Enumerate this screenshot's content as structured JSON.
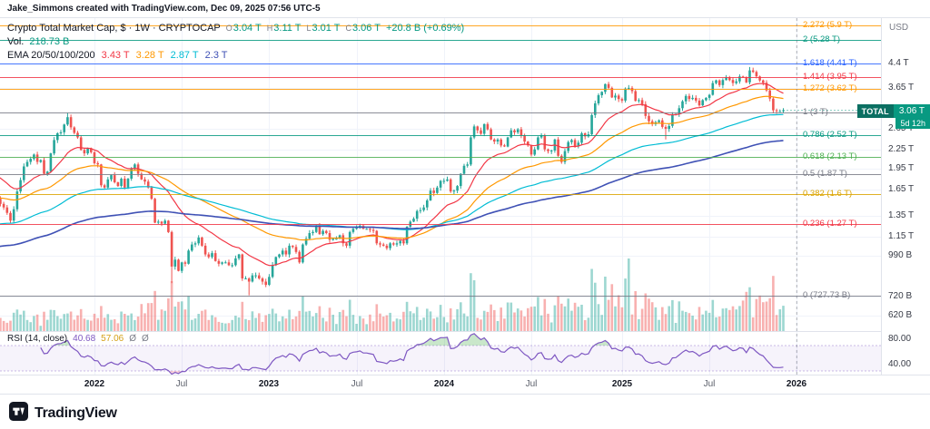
{
  "attribution": "Jake_Simmons created with TradingView.com, Dec 09, 2025 07:56 UTC-5",
  "legend": {
    "title": "Crypto Total Market Cap, $ · 1W · CRYPTOCAP",
    "ohlc": {
      "o_label": "O",
      "o": "3.04 T",
      "h_label": "H",
      "h": "3.11 T",
      "l_label": "L",
      "l": "3.01 T",
      "c_label": "C",
      "c": "3.06 T",
      "change": "+20.8 B (+0.69%)"
    },
    "volume": {
      "label": "Vol.",
      "value": "218.73 B"
    },
    "ema": {
      "label": "EMA 20/50/100/200",
      "values": [
        "3.43 T",
        "3.28 T",
        "2.87 T",
        "2.3 T"
      ]
    }
  },
  "rsi_legend": {
    "label": "RSI (14, close)",
    "values": [
      {
        "text": "40.68",
        "color": "#7e57c2"
      },
      {
        "text": "57.06",
        "color": "#d4a017"
      },
      {
        "text": "Ø",
        "color": "#787b86"
      },
      {
        "text": "Ø",
        "color": "#787b86"
      }
    ]
  },
  "badge": {
    "symbol": "TOTAL",
    "price": "3.06 T",
    "countdown": "5d 12h"
  },
  "footer": {
    "brand": "TradingView"
  },
  "chart_data": {
    "type": "candlestick",
    "title": "Crypto Total Market Cap, $ · 1W · CRYPTOCAP",
    "interval": "1W",
    "unit": "billions USD",
    "start_week": "2021-06-07",
    "panes": [
      "price+volume",
      "rsi"
    ],
    "current_value": 3060,
    "first_open": 1700,
    "last_candle_ohlc": [
      3040,
      3110,
      3010,
      3060
    ],
    "closes_billions": [
      1630,
      1540,
      1480,
      1440,
      1380,
      1300,
      1420,
      1630,
      1780,
      1980,
      2050,
      2100,
      2170,
      2050,
      2080,
      1870,
      1900,
      2190,
      2430,
      2560,
      2580,
      2740,
      2900,
      2680,
      2570,
      2480,
      2250,
      2190,
      2280,
      2210,
      2030,
      2010,
      1710,
      1680,
      1790,
      1850,
      1750,
      1700,
      1800,
      1680,
      1800,
      1940,
      2010,
      1870,
      1790,
      1760,
      1680,
      1540,
      1280,
      1290,
      1270,
      1300,
      1190,
      910,
      960,
      880,
      940,
      930,
      1030,
      1080,
      1090,
      1140,
      1070,
      1000,
      980,
      1010,
      950,
      930,
      940,
      940,
      920,
      920,
      970,
      1000,
      830,
      830,
      810,
      850,
      850,
      830,
      810,
      790,
      840,
      920,
      980,
      1000,
      1030,
      1000,
      1070,
      1060,
      1020,
      940,
      1080,
      1130,
      1180,
      1190,
      1250,
      1170,
      1200,
      1180,
      1120,
      1130,
      1130,
      1160,
      1090,
      1070,
      1190,
      1220,
      1230,
      1250,
      1220,
      1220,
      1210,
      1200,
      1090,
      1080,
      1070,
      1050,
      1090,
      1080,
      1090,
      1110,
      1090,
      1240,
      1290,
      1320,
      1400,
      1410,
      1440,
      1520,
      1640,
      1610,
      1680,
      1770,
      1770,
      1790,
      1630,
      1640,
      1700,
      1870,
      1990,
      2010,
      2480,
      2700,
      2620,
      2550,
      2750,
      2640,
      2440,
      2400,
      2440,
      2330,
      2310,
      2480,
      2620,
      2580,
      2640,
      2520,
      2400,
      2330,
      2170,
      2260,
      2480,
      2520,
      2260,
      2230,
      2240,
      2440,
      2150,
      2050,
      2230,
      2390,
      2430,
      2320,
      2380,
      2560,
      2500,
      2540,
      2950,
      3230,
      3440,
      3530,
      3750,
      3640,
      3380,
      3430,
      3340,
      3300,
      3620,
      3640,
      3550,
      3290,
      3310,
      3210,
      2930,
      2810,
      2750,
      2790,
      2830,
      2690,
      2650,
      2710,
      2960,
      2970,
      3110,
      3280,
      3420,
      3340,
      3370,
      3300,
      3180,
      3310,
      3370,
      3450,
      3780,
      3860,
      3720,
      3870,
      3960,
      3870,
      3780,
      3830,
      3980,
      3960,
      3800,
      4170,
      4120,
      3980,
      3860,
      3790,
      3570,
      3350,
      3060,
      3040,
      3040,
      3060
    ],
    "wick_overrides": {
      "high": {
        "22": 3005,
        "225": 4280
      },
      "low": {
        "53": 800,
        "76": 728,
        "200": 2440
      }
    },
    "volume_overrides": {
      "53": 55,
      "143": 56,
      "182": 60,
      "189": 80
    },
    "indicators": {
      "ema": {
        "periods": [
          20,
          50,
          100,
          200
        ],
        "seeds": [
          1900,
          1550,
          1250,
          1050
        ],
        "colors": [
          "#f23645",
          "#ff9800",
          "#00bcd4",
          "#3f51b5"
        ],
        "last_values": [
          "3.43 T",
          "3.28 T",
          "2.87 T",
          "2.3 T"
        ]
      },
      "rsi": {
        "period": 14,
        "color": "#7e57c2",
        "bands": [
          70,
          30
        ],
        "last_value": 40.68,
        "scale_ticks": [
          {
            "label": "80.00",
            "value": 80
          },
          {
            "label": "40.00",
            "value": 40
          }
        ]
      },
      "volume": {
        "last_value": "218.73 B"
      }
    },
    "fib_levels": [
      {
        "label": "2.272 (5.9 T)",
        "value": 5900,
        "color": "#ff9800"
      },
      {
        "label": "2 (5.28 T)",
        "value": 5280,
        "color": "#089981"
      },
      {
        "label": "1.618 (4.41 T)",
        "value": 4410,
        "color": "#2962ff"
      },
      {
        "label": "1.414 (3.95 T)",
        "value": 3950,
        "color": "#f23645"
      },
      {
        "label": "1.272 (3.62 T)",
        "value": 3620,
        "color": "#ff9800"
      },
      {
        "label": "1 (3 T)",
        "value": 3000,
        "color": "#787b86"
      },
      {
        "label": "0.786 (2.52 T)",
        "value": 2520,
        "color": "#089981"
      },
      {
        "label": "0.618 (2.13 T)",
        "value": 2130,
        "color": "#4caf50"
      },
      {
        "label": "0.5 (1.87 T)",
        "value": 1870,
        "color": "#787b86"
      },
      {
        "label": "0.382 (1.6 T)",
        "value": 1600,
        "color": "#dba400"
      },
      {
        "label": "0.236 (1.27 T)",
        "value": 1270,
        "color": "#f23645"
      },
      {
        "label": "0 (727.73 B)",
        "value": 727.73,
        "color": "#787b86"
      }
    ],
    "y_axis": {
      "scale": "log",
      "currency": "USD",
      "ticks": [
        {
          "label": "4.4 T",
          "value": 4400
        },
        {
          "label": "3.65 T",
          "value": 3650
        },
        {
          "label": "2.65 T",
          "value": 2650
        },
        {
          "label": "2.25 T",
          "value": 2250
        },
        {
          "label": "1.95 T",
          "value": 1950
        },
        {
          "label": "1.65 T",
          "value": 1650
        },
        {
          "label": "1.35 T",
          "value": 1350
        },
        {
          "label": "1.15 T",
          "value": 1150
        },
        {
          "label": "990 B",
          "value": 990
        },
        {
          "label": "720 B",
          "value": 720
        },
        {
          "label": "620 B",
          "value": 620
        }
      ]
    },
    "x_axis": {
      "ticks": [
        {
          "label": "2022",
          "bar": 30,
          "major": true
        },
        {
          "label": "Jul",
          "bar": 56,
          "major": false
        },
        {
          "label": "2023",
          "bar": 82,
          "major": true
        },
        {
          "label": "Jul",
          "bar": 108,
          "major": false
        },
        {
          "label": "2024",
          "bar": 134,
          "major": true
        },
        {
          "label": "Jul",
          "bar": 160,
          "major": false
        },
        {
          "label": "2025",
          "bar": 187,
          "major": true
        },
        {
          "label": "Jul",
          "bar": 213,
          "major": false
        },
        {
          "label": "2026",
          "bar": 239,
          "major": true
        }
      ]
    },
    "colors": {
      "up": "#26a69a",
      "down": "#ef5350",
      "vol_up": "rgba(38,166,154,0.45)",
      "vol_down": "rgba(239,83,80,0.45)",
      "grid": "#f0f3fa",
      "separator": "#e0e3eb",
      "last_price": "#089981"
    }
  }
}
